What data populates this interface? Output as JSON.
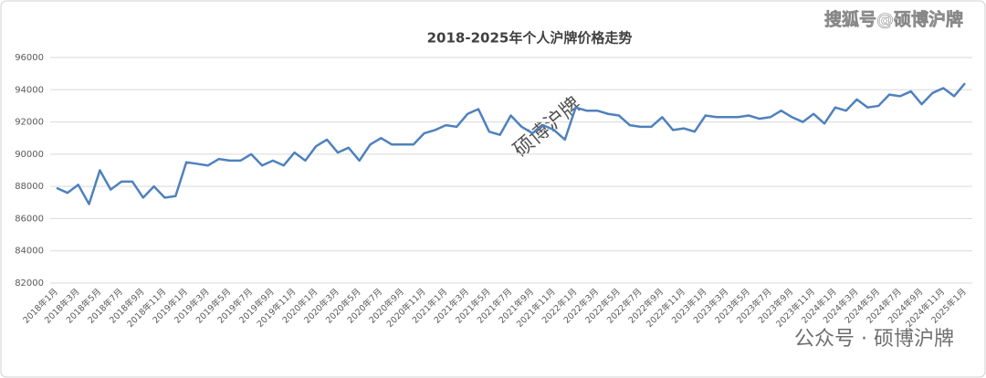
{
  "chart_data": {
    "type": "line",
    "title": "2018-2025年个人沪牌价格走势",
    "categories": [
      "2018年1月",
      null,
      "2018年3月",
      null,
      "2018年5月",
      null,
      "2018年7月",
      null,
      "2018年9月",
      null,
      "2018年11月",
      null,
      "2019年1月",
      null,
      "2019年3月",
      null,
      "2019年5月",
      null,
      "2019年7月",
      null,
      "2019年9月",
      null,
      "2019年11月",
      null,
      "2020年1月",
      null,
      "2020年3月",
      null,
      "2020年5月",
      null,
      "2020年7月",
      null,
      "2020年9月",
      null,
      "2020年11月",
      null,
      "2021年1月",
      null,
      "2021年3月",
      null,
      "2021年5月",
      null,
      "2021年7月",
      null,
      "2021年9月",
      null,
      "2021年11月",
      null,
      "2022年1月",
      null,
      "2022年3月",
      null,
      "2022年5月",
      null,
      "2022年7月",
      null,
      "2022年9月",
      null,
      "2022年11月",
      null,
      "2023年1月",
      null,
      "2023年3月",
      null,
      "2023年5月",
      null,
      "2023年7月",
      null,
      "2023年9月",
      null,
      "2023年11月",
      null,
      "2024年1月",
      null,
      "2024年3月",
      null,
      "2024年5月",
      null,
      "2024年7月",
      null,
      "2024年9月",
      null,
      "2024年11月",
      null,
      "2025年1月"
    ],
    "values": [
      87900,
      87600,
      88100,
      86900,
      89000,
      87800,
      88300,
      88300,
      87300,
      88000,
      87300,
      87400,
      89500,
      89400,
      89300,
      89700,
      89600,
      89600,
      90000,
      89300,
      89600,
      89300,
      90100,
      89600,
      90500,
      90900,
      90100,
      90400,
      89600,
      90600,
      91000,
      90600,
      90600,
      90600,
      91300,
      91500,
      91800,
      91700,
      92500,
      92800,
      91400,
      91200,
      92400,
      91700,
      91300,
      91800,
      91500,
      90900,
      92900,
      92700,
      92700,
      92500,
      92400,
      91800,
      91700,
      91700,
      92300,
      91500,
      91600,
      91400,
      92400,
      92300,
      92300,
      92300,
      92400,
      92200,
      92300,
      92700,
      92300,
      92000,
      92500,
      91900,
      92900,
      92700,
      93400,
      92900,
      93000,
      93700,
      93600,
      93900,
      93100,
      93800,
      94100,
      93600,
      94400
    ],
    "color": "#4f81bd",
    "ylim": [
      82000,
      96000
    ],
    "yticks": [
      82000,
      84000,
      86000,
      88000,
      90000,
      92000,
      94000,
      96000
    ],
    "grid": true
  },
  "watermarks": [
    "搜狐号@硕博沪牌",
    "硕博沪牌",
    "公众号 · 硕博沪牌"
  ]
}
